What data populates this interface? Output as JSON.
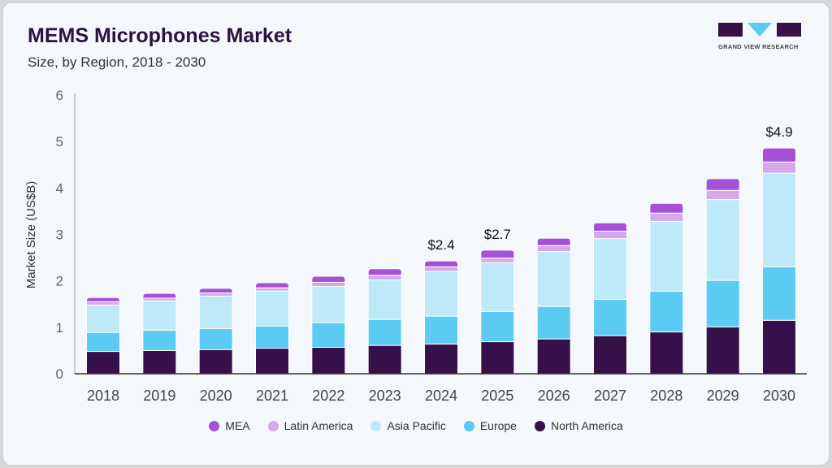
{
  "header": {
    "title": "MEMS Microphones Market",
    "subtitle": "Size, by Region, 2018 - 2030"
  },
  "logo": {
    "text": "GRAND VIEW RESEARCH"
  },
  "chart_data": {
    "type": "bar",
    "stacked": true,
    "ylabel": "Market Size (US$B)",
    "ylim": [
      0,
      6
    ],
    "yticks": [
      "0",
      "1",
      "2",
      "3",
      "4",
      "5",
      "6"
    ],
    "grid": false,
    "legend_position": "bottom",
    "categories": [
      "2018",
      "2019",
      "2020",
      "2021",
      "2022",
      "2023",
      "2024",
      "2025",
      "2026",
      "2027",
      "2028",
      "2029",
      "2030"
    ],
    "series": [
      {
        "name": "North America",
        "color": "#35104a",
        "values": [
          0.48,
          0.5,
          0.52,
          0.55,
          0.57,
          0.61,
          0.64,
          0.69,
          0.75,
          0.82,
          0.9,
          1.01,
          1.15
        ]
      },
      {
        "name": "Europe",
        "color": "#5bcbf3",
        "values": [
          0.41,
          0.44,
          0.45,
          0.48,
          0.53,
          0.56,
          0.6,
          0.65,
          0.7,
          0.78,
          0.88,
          1.0,
          1.15
        ]
      },
      {
        "name": "Asia Pacific",
        "color": "#bde9f9",
        "values": [
          0.59,
          0.63,
          0.7,
          0.75,
          0.78,
          0.85,
          0.96,
          1.05,
          1.18,
          1.31,
          1.5,
          1.74,
          2.02
        ]
      },
      {
        "name": "Latin America",
        "color": "#d4a9ea",
        "values": [
          0.07,
          0.06,
          0.07,
          0.07,
          0.09,
          0.1,
          0.1,
          0.1,
          0.13,
          0.16,
          0.18,
          0.2,
          0.24
        ]
      },
      {
        "name": "MEA",
        "color": "#a451d8",
        "values": [
          0.09,
          0.1,
          0.1,
          0.11,
          0.13,
          0.14,
          0.13,
          0.17,
          0.16,
          0.18,
          0.21,
          0.25,
          0.3
        ]
      }
    ],
    "annotations": [
      {
        "category": "2024",
        "text": "$2.4"
      },
      {
        "category": "2025",
        "text": "$2.7"
      },
      {
        "category": "2030",
        "text": "$4.9"
      }
    ],
    "legend_order": [
      "MEA",
      "Latin America",
      "Asia Pacific",
      "Europe",
      "North America"
    ]
  }
}
